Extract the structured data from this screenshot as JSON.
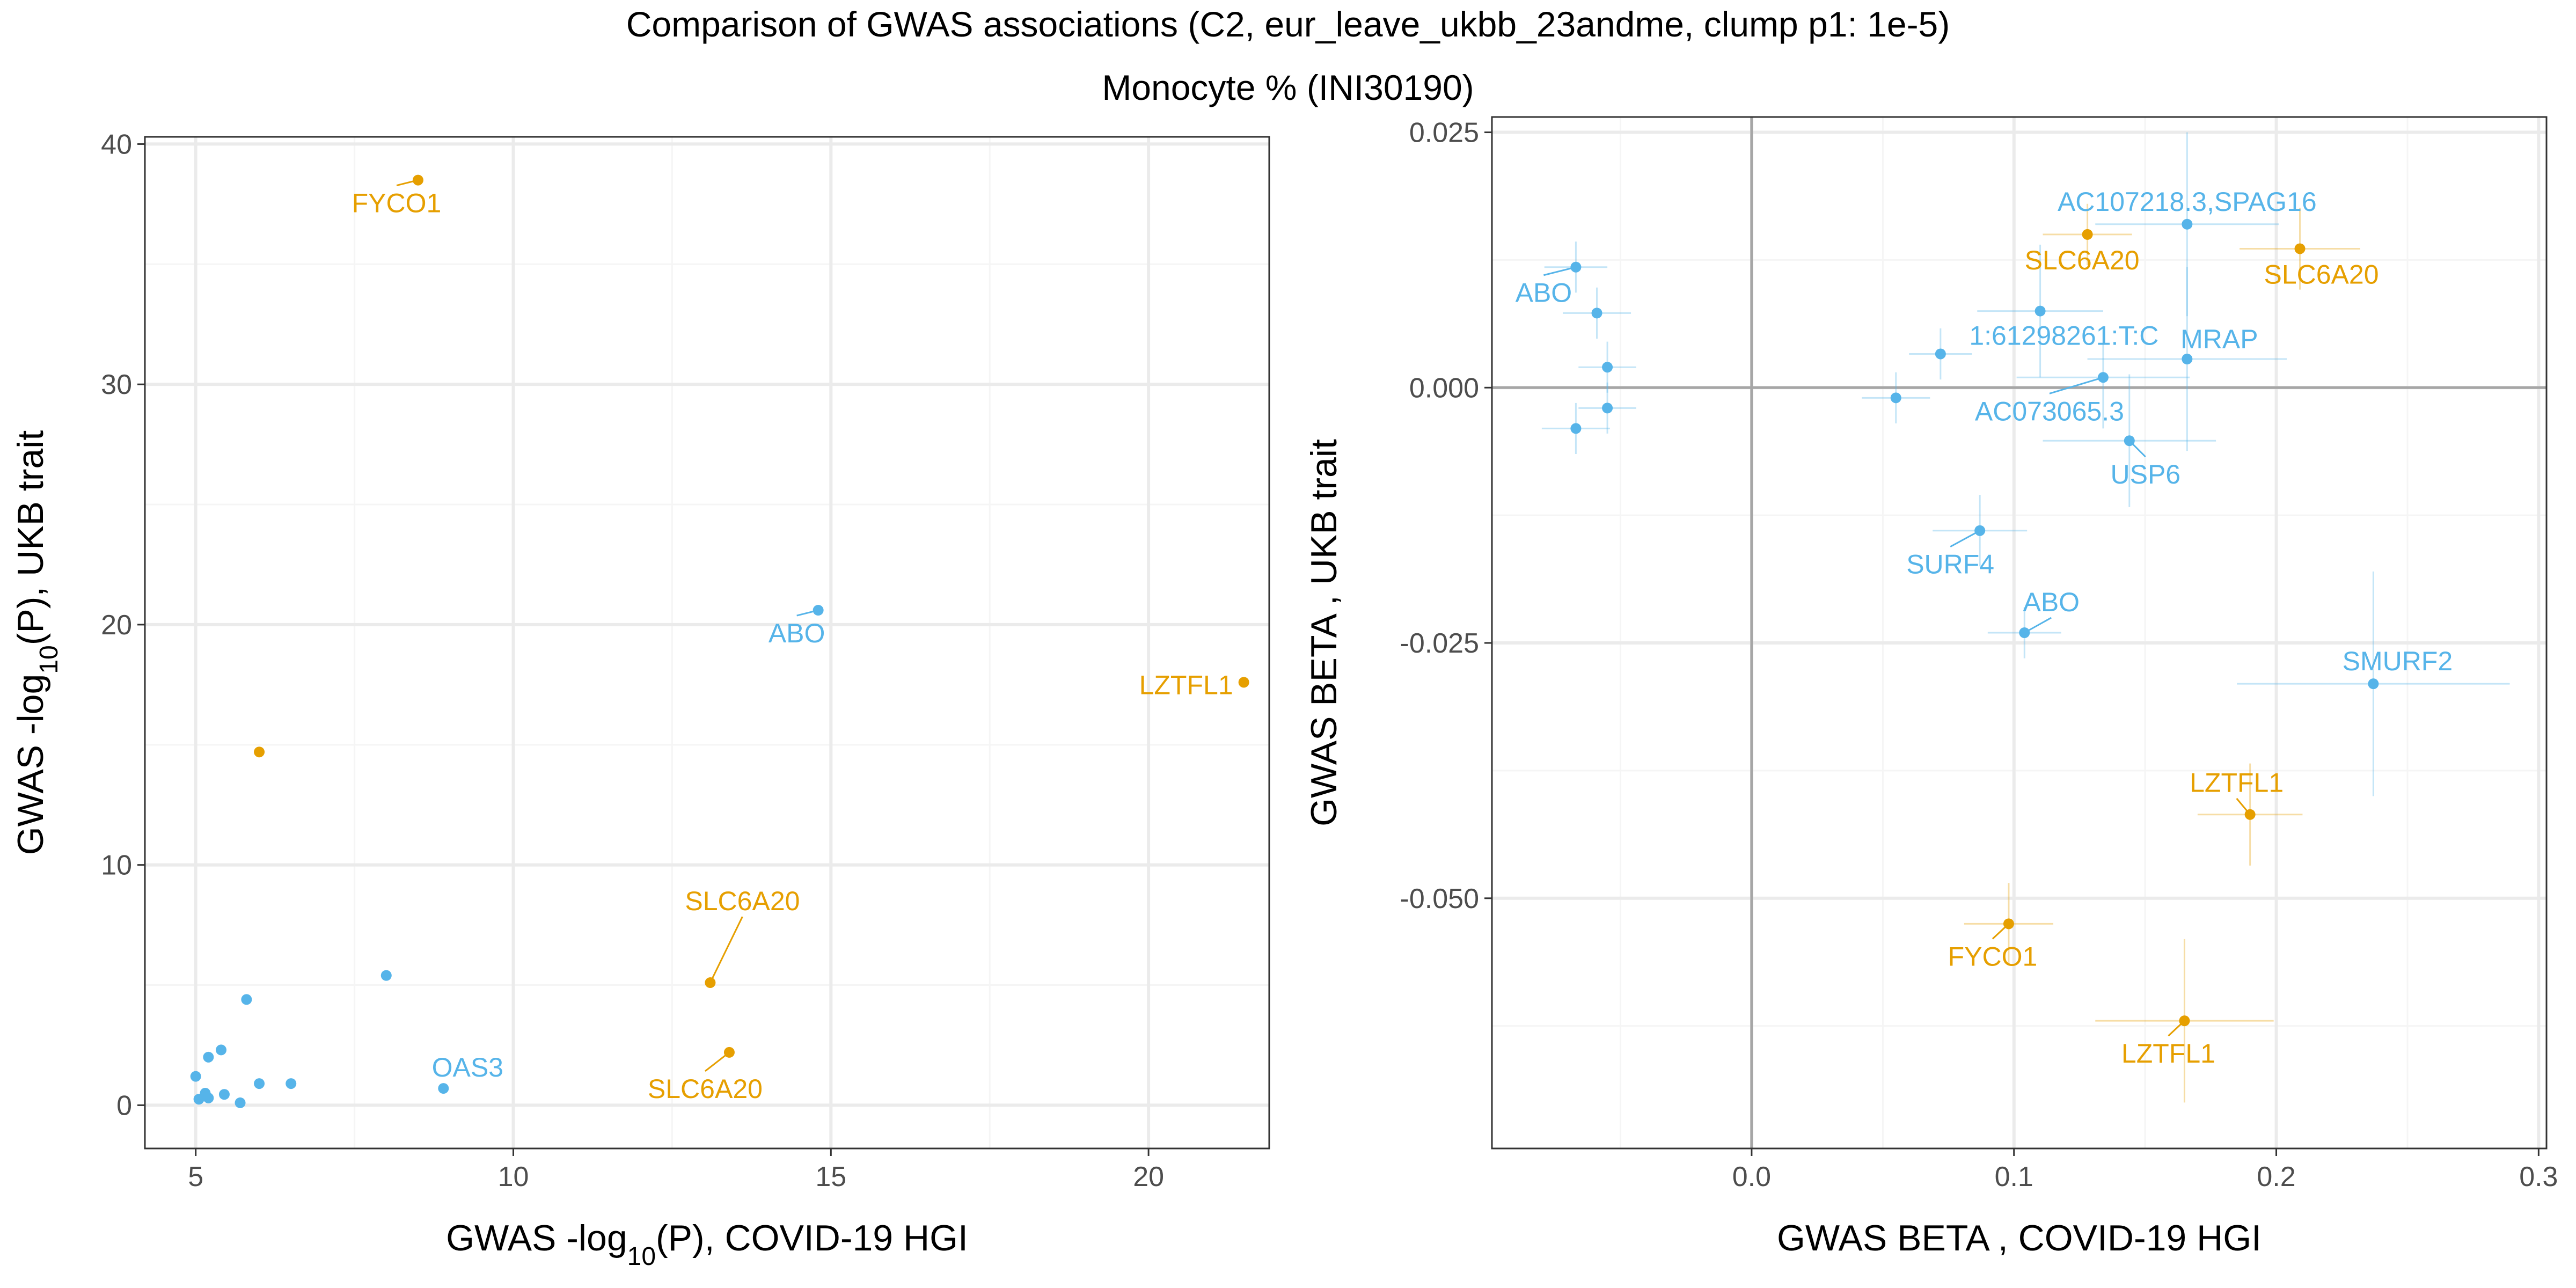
{
  "figure": {
    "title": "Comparison of GWAS associations (C2, eur_leave_ukbb_23andme, clump p1: 1e-5)",
    "subtitle": "Monocyte % (INI30190)"
  },
  "colors": {
    "blue": "#56B4E9",
    "orange": "#E69F00",
    "panel_border": "#333333",
    "grid_major": "#EBEBEB",
    "grid_minor": "#F5F5F5",
    "zero_line": "#A6A6A6",
    "text": "#000000",
    "tick_text": "#4D4D4D"
  },
  "chart_data": [
    {
      "type": "scatter",
      "xlabel": "GWAS -log10(P), COVID-19 HGI",
      "ylabel": "GWAS -log10(P), UKB trait",
      "xlim": [
        4.2,
        21.9
      ],
      "ylim": [
        -1.8,
        40.3
      ],
      "x_ticks": [
        5,
        10,
        15,
        20
      ],
      "x_tick_labels": [
        "5",
        "10",
        "15",
        "20"
      ],
      "y_ticks": [
        0,
        10,
        20,
        30,
        40
      ],
      "y_tick_labels": [
        "0",
        "10",
        "20",
        "30",
        "40"
      ],
      "grid": true,
      "points": [
        {
          "x": 8.5,
          "y": 38.5,
          "color": "orange",
          "label": "FYCO1"
        },
        {
          "x": 14.8,
          "y": 20.6,
          "color": "blue",
          "label": "ABO"
        },
        {
          "x": 21.5,
          "y": 17.6,
          "color": "orange",
          "label": "LZTFL1"
        },
        {
          "x": 6.0,
          "y": 14.7,
          "color": "orange",
          "label": ""
        },
        {
          "x": 13.1,
          "y": 5.1,
          "color": "orange",
          "label": "SLC6A20"
        },
        {
          "x": 13.4,
          "y": 2.2,
          "color": "orange",
          "label": "SLC6A20"
        },
        {
          "x": 8.9,
          "y": 0.7,
          "color": "blue",
          "label": "OAS3"
        },
        {
          "x": 8.0,
          "y": 5.4,
          "color": "blue",
          "label": ""
        },
        {
          "x": 5.8,
          "y": 4.4,
          "color": "blue",
          "label": ""
        },
        {
          "x": 5.4,
          "y": 2.3,
          "color": "blue",
          "label": ""
        },
        {
          "x": 5.2,
          "y": 2.0,
          "color": "blue",
          "label": ""
        },
        {
          "x": 5.0,
          "y": 1.2,
          "color": "blue",
          "label": ""
        },
        {
          "x": 6.0,
          "y": 0.9,
          "color": "blue",
          "label": ""
        },
        {
          "x": 6.5,
          "y": 0.9,
          "color": "blue",
          "label": ""
        },
        {
          "x": 5.15,
          "y": 0.5,
          "color": "blue",
          "label": ""
        },
        {
          "x": 5.45,
          "y": 0.45,
          "color": "blue",
          "label": ""
        },
        {
          "x": 5.05,
          "y": 0.25,
          "color": "blue",
          "label": ""
        },
        {
          "x": 5.2,
          "y": 0.3,
          "color": "blue",
          "label": ""
        },
        {
          "x": 5.7,
          "y": 0.1,
          "color": "blue",
          "label": ""
        }
      ]
    },
    {
      "type": "scatter",
      "xlabel": "GWAS BETA , COVID-19 HGI",
      "ylabel": "GWAS BETA , UKB trait",
      "xlim": [
        -0.099,
        0.303
      ],
      "ylim": [
        -0.0745,
        0.0265
      ],
      "x_ticks": [
        0.0,
        0.1,
        0.2,
        0.3
      ],
      "x_tick_labels": [
        "0.0",
        "0.1",
        "0.2",
        "0.3"
      ],
      "y_ticks": [
        0.025,
        0.0,
        -0.025,
        -0.05
      ],
      "y_tick_labels": [
        "0.025",
        "0.000",
        "-0.025",
        "-0.050"
      ],
      "grid": true,
      "zero_lines": true,
      "points": [
        {
          "x": -0.067,
          "y": 0.0118,
          "xerr": 0.012,
          "yerr": 0.0025,
          "color": "blue",
          "label": "ABO"
        },
        {
          "x": -0.059,
          "y": 0.0073,
          "xerr": 0.013,
          "yerr": 0.0025,
          "color": "blue",
          "label": ""
        },
        {
          "x": -0.055,
          "y": 0.002,
          "xerr": 0.011,
          "yerr": 0.0025,
          "color": "blue",
          "label": ""
        },
        {
          "x": -0.055,
          "y": -0.002,
          "xerr": 0.011,
          "yerr": 0.0025,
          "color": "blue",
          "label": ""
        },
        {
          "x": -0.067,
          "y": -0.004,
          "xerr": 0.013,
          "yerr": 0.0025,
          "color": "blue",
          "label": ""
        },
        {
          "x": 0.055,
          "y": -0.001,
          "xerr": 0.013,
          "yerr": 0.0025,
          "color": "blue",
          "label": ""
        },
        {
          "x": 0.166,
          "y": 0.016,
          "xerr": 0.035,
          "yerr": 0.009,
          "color": "blue",
          "label": "AC107218.3,SPAG16"
        },
        {
          "x": 0.128,
          "y": 0.015,
          "xerr": 0.017,
          "yerr": 0.003,
          "color": "orange",
          "label": "SLC6A20"
        },
        {
          "x": 0.209,
          "y": 0.0136,
          "xerr": 0.023,
          "yerr": 0.004,
          "color": "orange",
          "label": "SLC6A20"
        },
        {
          "x": 0.11,
          "y": 0.0075,
          "xerr": 0.024,
          "yerr": 0.0065,
          "color": "blue",
          "label": ""
        },
        {
          "x": 0.072,
          "y": 0.0033,
          "xerr": 0.012,
          "yerr": 0.0025,
          "color": "blue",
          "label": "1:61298261:T:C"
        },
        {
          "x": 0.166,
          "y": 0.0028,
          "xerr": 0.038,
          "yerr": 0.009,
          "color": "blue",
          "label": "MRAP"
        },
        {
          "x": 0.134,
          "y": 0.001,
          "xerr": 0.033,
          "yerr": 0.005,
          "color": "blue",
          "label": "AC073065.3"
        },
        {
          "x": 0.144,
          "y": -0.0052,
          "xerr": 0.033,
          "yerr": 0.0065,
          "color": "blue",
          "label": "USP6"
        },
        {
          "x": 0.087,
          "y": -0.014,
          "xerr": 0.018,
          "yerr": 0.0035,
          "color": "blue",
          "label": "SURF4"
        },
        {
          "x": 0.104,
          "y": -0.024,
          "xerr": 0.014,
          "yerr": 0.0025,
          "color": "blue",
          "label": "ABO"
        },
        {
          "x": 0.237,
          "y": -0.029,
          "xerr": 0.052,
          "yerr": 0.011,
          "color": "blue",
          "label": "SMURF2"
        },
        {
          "x": 0.19,
          "y": -0.0418,
          "xerr": 0.02,
          "yerr": 0.005,
          "color": "orange",
          "label": "LZTFL1"
        },
        {
          "x": 0.098,
          "y": -0.0525,
          "xerr": 0.017,
          "yerr": 0.004,
          "color": "orange",
          "label": "FYCO1"
        },
        {
          "x": 0.165,
          "y": -0.062,
          "xerr": 0.034,
          "yerr": 0.008,
          "color": "orange",
          "label": "LZTFL1"
        }
      ]
    }
  ]
}
